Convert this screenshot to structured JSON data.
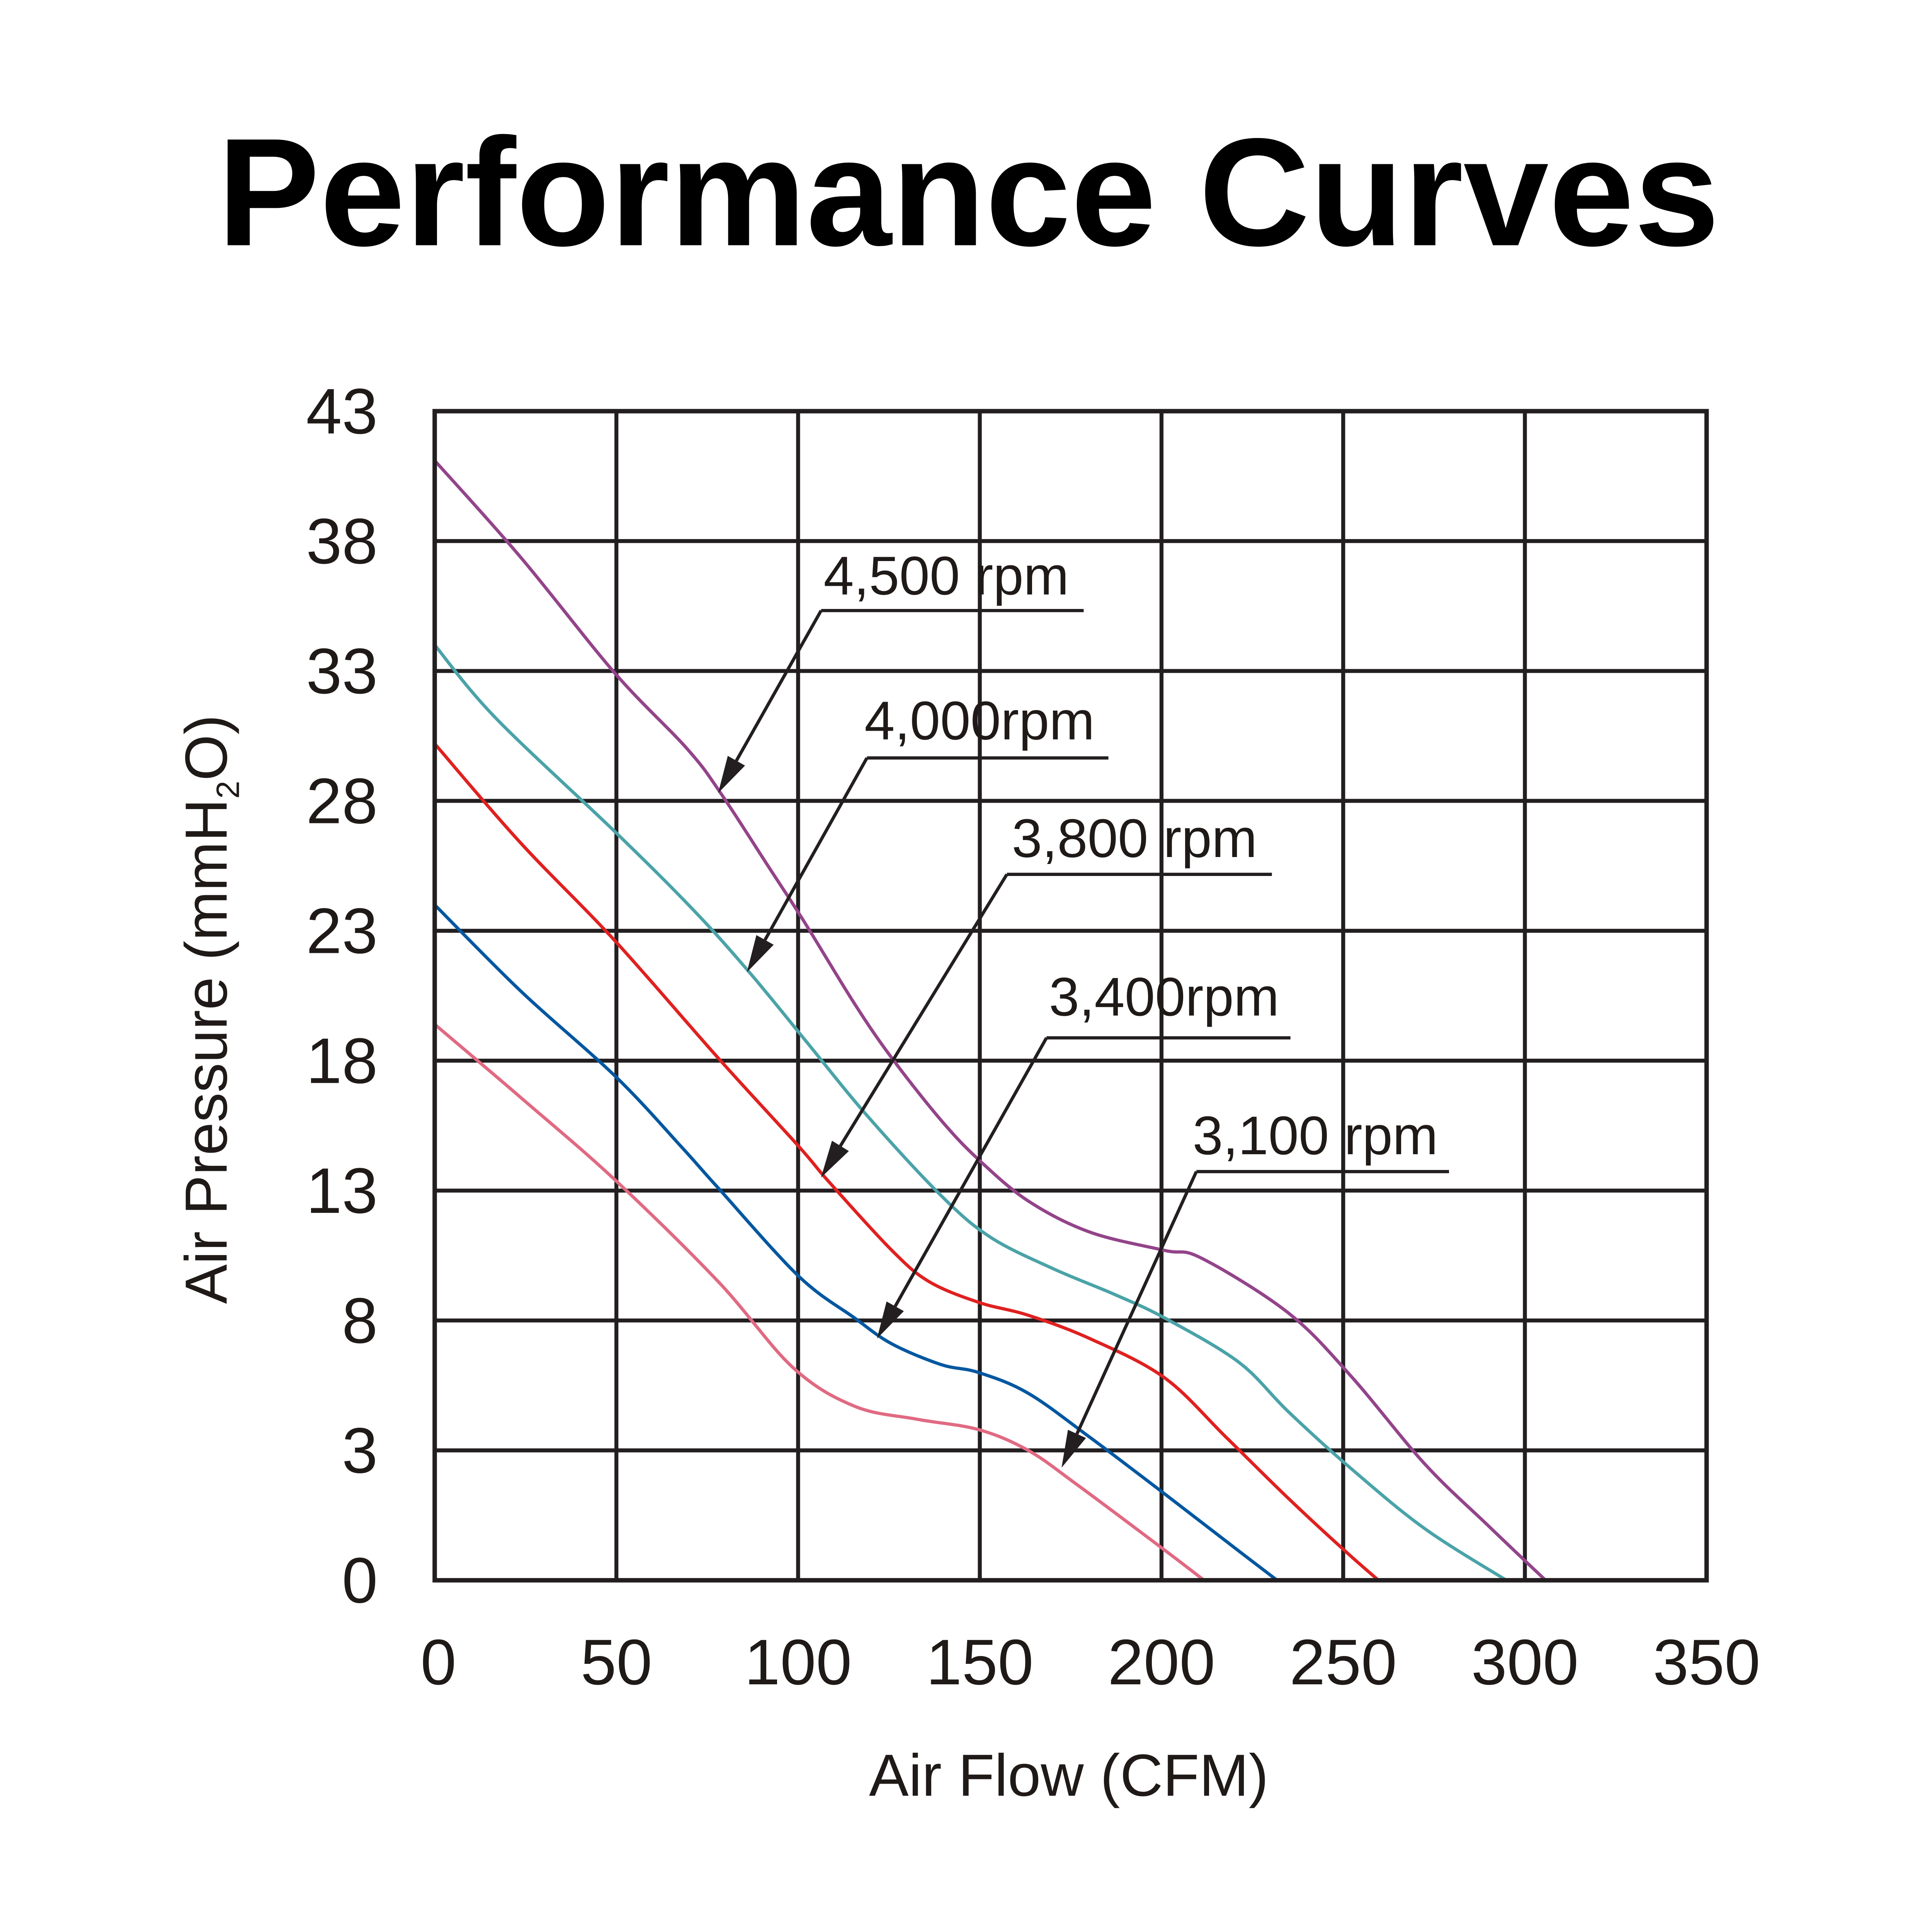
{
  "chart_data": {
    "type": "line",
    "title": "Performance Curves",
    "xlabel": "Air Flow (CFM)",
    "ylabel": "Air Pressure (mmH",
    "ylabel_subscript": "2",
    "ylabel_suffix": "O)",
    "xlim": [
      0,
      350
    ],
    "ylim": [
      0,
      43
    ],
    "x_ticks": [
      0,
      50,
      100,
      150,
      200,
      250,
      300,
      350
    ],
    "x_tick_labels": [
      "0",
      "50",
      "100",
      "150",
      "200",
      "250",
      "300",
      "350"
    ],
    "y_ticks": [
      0,
      3,
      8,
      13,
      18,
      23,
      28,
      33,
      38,
      43
    ],
    "y_tick_labels": [
      "0",
      "3",
      "8",
      "13",
      "18",
      "23",
      "28",
      "33",
      "38",
      "43"
    ],
    "grid": true,
    "legend": "none (inline callout labels)",
    "series": [
      {
        "name": "4,500 rpm",
        "color": "#93448a",
        "x": [
          0,
          23.5,
          49.7,
          69.5,
          78.7,
          91.7,
          101.9,
          115.5,
          125.8,
          139.4,
          149.6,
          163.3,
          180.3,
          200.8,
          211.0,
          234.8,
          251.9,
          272.3,
          289.4,
          305.7
        ],
        "y": [
          41.1,
          37.4,
          32.9,
          30.0,
          28.3,
          25.5,
          23.3,
          20.2,
          18.1,
          15.7,
          14.2,
          12.6,
          11.4,
          10.7,
          10.4,
          8.3,
          5.9,
          2.7,
          1.3,
          0
        ]
      },
      {
        "name": "4,000rpm",
        "color": "#4aa3a8",
        "x": [
          0,
          16.7,
          49.7,
          71.2,
          86.6,
          101.9,
          118.9,
          139.4,
          153.0,
          170.1,
          187.1,
          200.8,
          221.2,
          234.8,
          251.9,
          272.3,
          294.9
        ],
        "y": [
          34.0,
          31.2,
          26.8,
          23.8,
          21.4,
          18.8,
          15.9,
          12.8,
          11.2,
          10.0,
          9.0,
          8.1,
          6.4,
          4.5,
          2.6,
          1.2,
          0
        ]
      },
      {
        "name": "3,800 rpm",
        "color": "#e02020",
        "x": [
          0,
          23.5,
          49.7,
          78.0,
          100.2,
          108.7,
          125.8,
          136.0,
          149.6,
          163.3,
          180.3,
          200.8,
          217.8,
          234.8,
          250.2,
          259.7
        ],
        "y": [
          30.2,
          26.4,
          22.6,
          18.1,
          14.7,
          13.3,
          10.7,
          9.5,
          8.7,
          8.2,
          7.3,
          5.8,
          3.5,
          1.9,
          0.7,
          0
        ]
      },
      {
        "name": "3,400rpm",
        "color": "#0057a0",
        "x": [
          0,
          23.5,
          49.7,
          67.8,
          78.0,
          100.2,
          115.5,
          125.8,
          139.4,
          149.6,
          163.3,
          180.3,
          200.8,
          217.8,
          231.8
        ],
        "y": [
          24.0,
          20.7,
          17.4,
          14.7,
          13.1,
          9.7,
          8.1,
          7.1,
          6.3,
          6.0,
          5.2,
          3.5,
          2.0,
          0.9,
          0
        ]
      },
      {
        "name": "3,100 rpm",
        "color": "#e06a82",
        "x": [
          0,
          23.5,
          49.7,
          78.0,
          98.5,
          115.5,
          132.6,
          149.6,
          163.3,
          176.9,
          200.8,
          211.7
        ],
        "y": [
          19.4,
          16.6,
          13.4,
          9.5,
          6.2,
          4.7,
          4.2,
          3.8,
          3.0,
          2.2,
          0.7,
          0
        ]
      }
    ],
    "annotations": [
      {
        "text": "4,500 rpm",
        "series": "4,500 rpm",
        "points_to": [
          78.0,
          28.3
        ]
      },
      {
        "text": "4,000rpm",
        "series": "4,000rpm",
        "points_to": [
          85.9,
          21.4
        ]
      },
      {
        "text": "3,800 rpm",
        "series": "3,800 rpm",
        "points_to": [
          106.3,
          13.5
        ]
      },
      {
        "text": "3,400rpm",
        "series": "3,400rpm",
        "points_to": [
          121.7,
          7.3
        ]
      },
      {
        "text": "3,100 rpm",
        "series": "3,100 rpm",
        "points_to": [
          172.5,
          2.6
        ]
      }
    ]
  }
}
